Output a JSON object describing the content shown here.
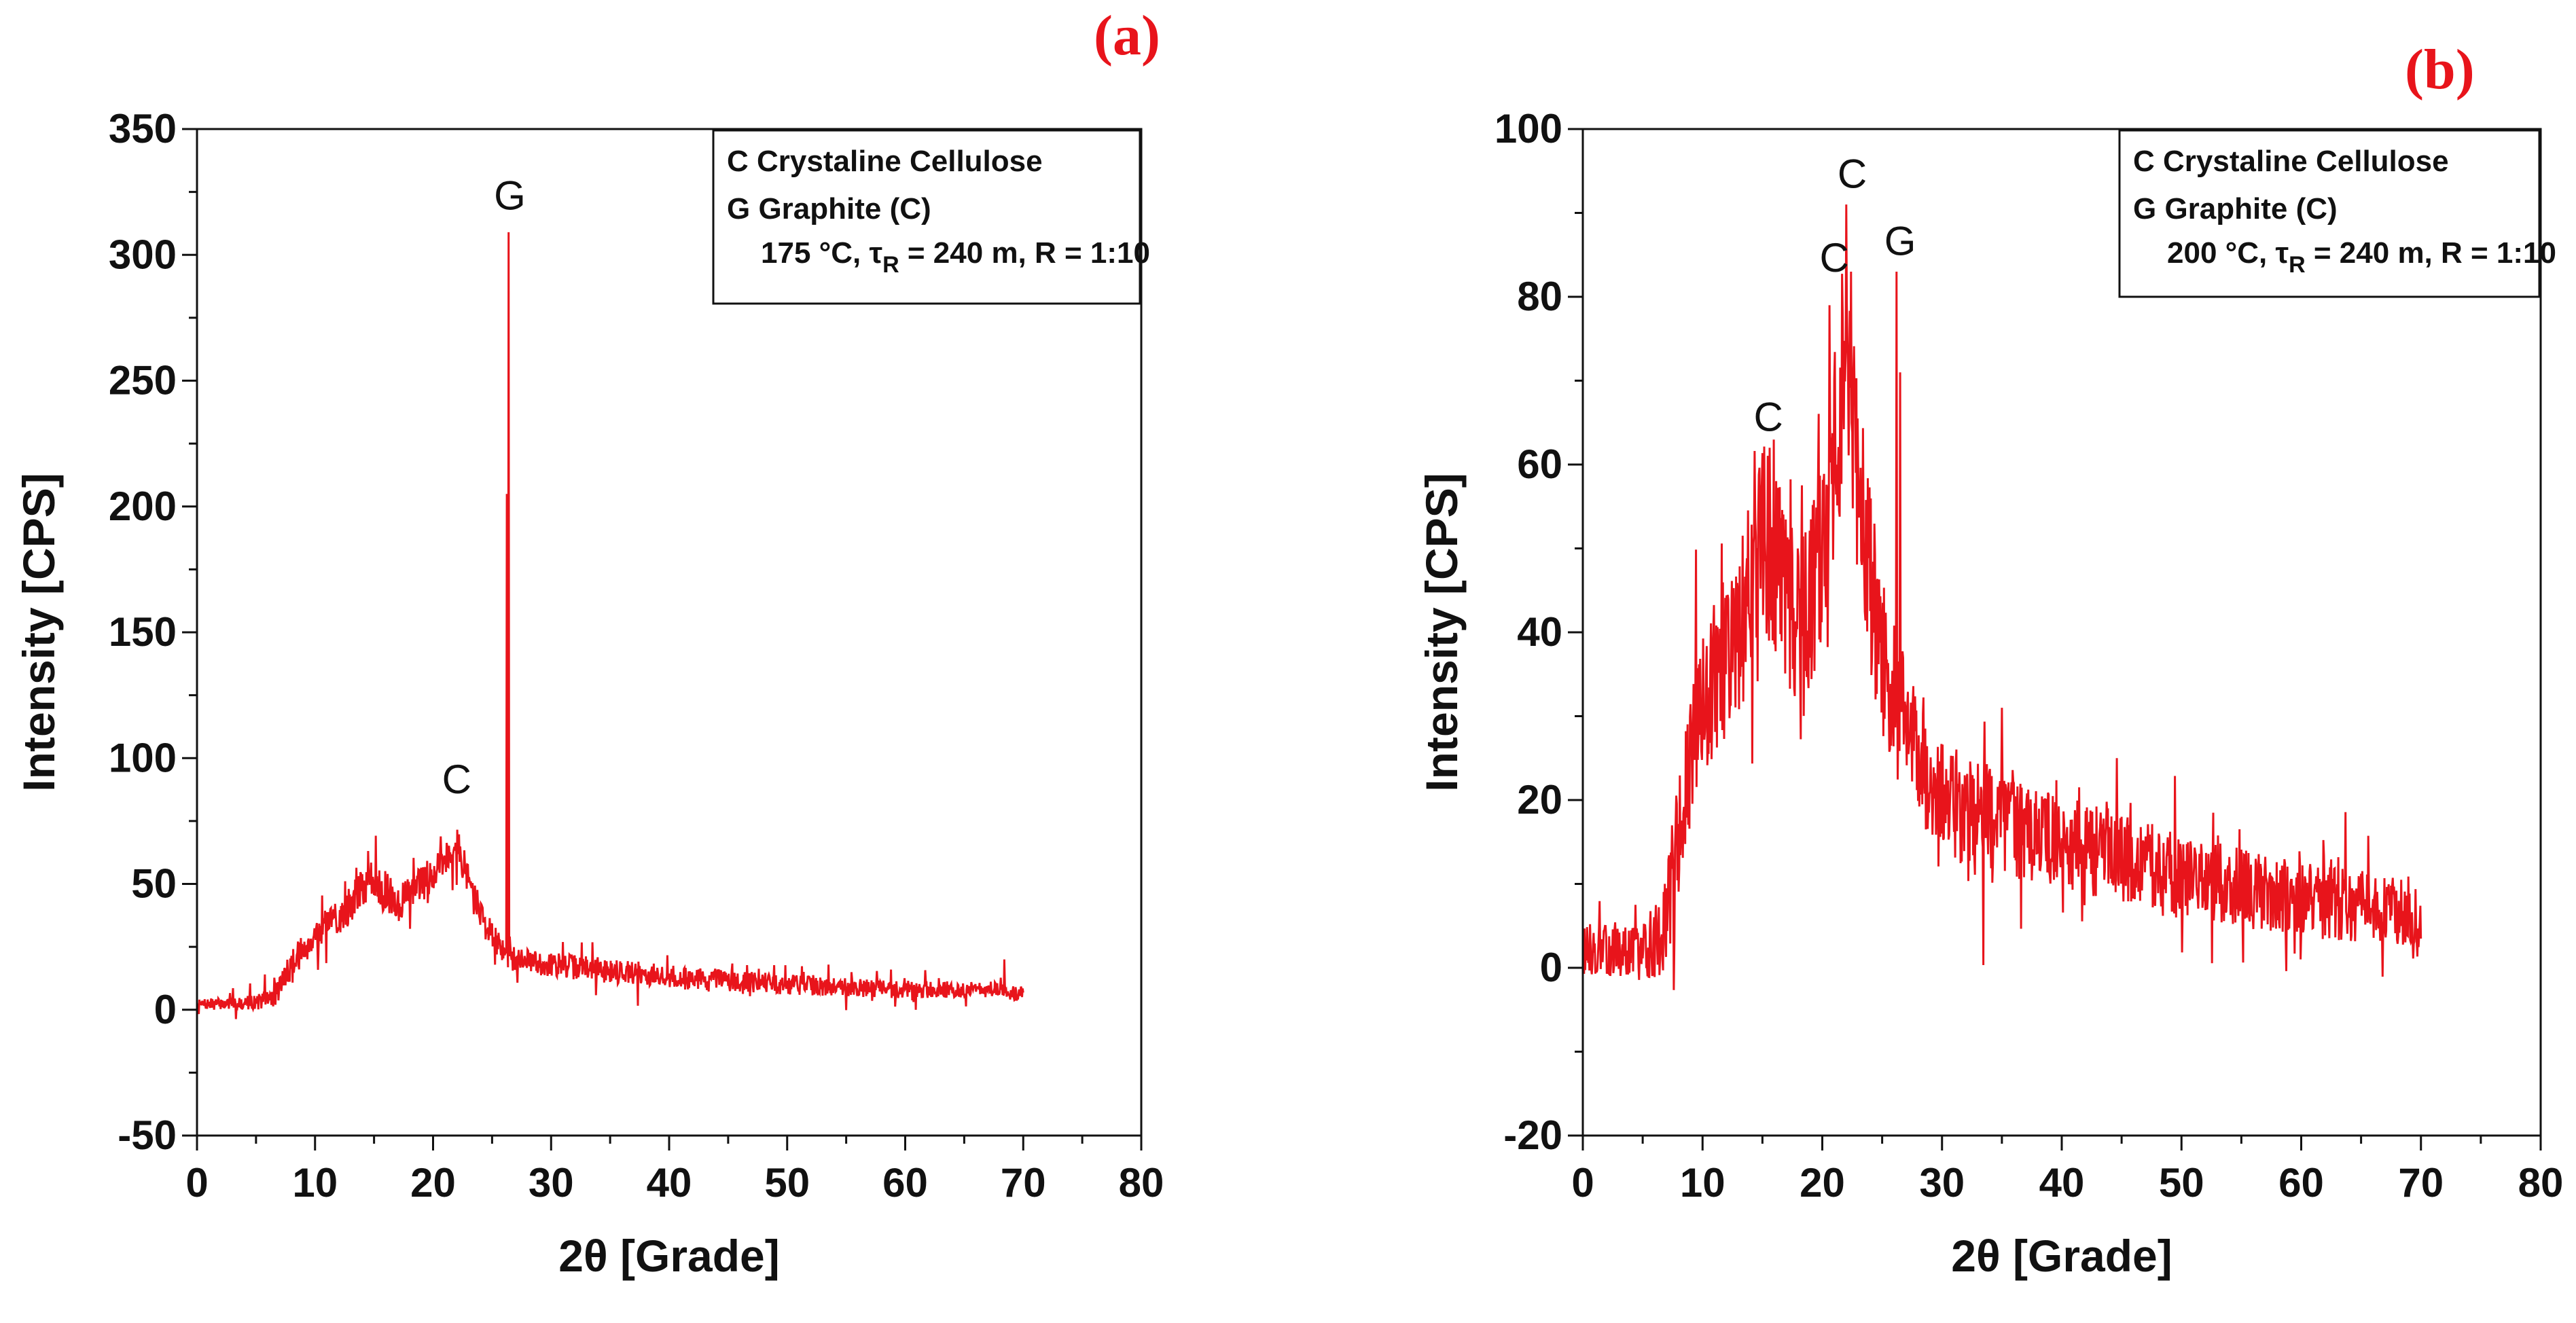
{
  "chart_data": [
    {
      "id": "a",
      "panel_label": "(a)",
      "type": "line",
      "xlabel": "2θ [Grade]",
      "ylabel": "Intensity [CPS]",
      "xlim": [
        0,
        80
      ],
      "ylim": [
        -50,
        350
      ],
      "xticks": [
        0,
        10,
        20,
        30,
        40,
        50,
        60,
        70,
        80
      ],
      "yticks": [
        -50,
        0,
        50,
        100,
        150,
        200,
        250,
        300,
        350
      ],
      "legend": {
        "position": "top-right",
        "lines": [
          "C Crystaline Cellulose",
          "G Graphite (C)"
        ],
        "condition": {
          "temp": "175 °C, τ",
          "sub": "R",
          "rest": " = 240 m, R = 1:10"
        }
      },
      "annotations": [
        {
          "text": "G",
          "x": 26.5,
          "y": 318
        },
        {
          "text": "C",
          "x": 22.0,
          "y": 86
        }
      ],
      "series": [
        {
          "name": "XRD 175 °C",
          "color": "#e8141b",
          "profile": [
            [
              0,
              2
            ],
            [
              5,
              3
            ],
            [
              6.5,
              5
            ],
            [
              8,
              18
            ],
            [
              10,
              30
            ],
            [
              12,
              36
            ],
            [
              14,
              48
            ],
            [
              15,
              52
            ],
            [
              17,
              42
            ],
            [
              19,
              50
            ],
            [
              21,
              60
            ],
            [
              22,
              66
            ],
            [
              23,
              52
            ],
            [
              24.5,
              33
            ],
            [
              25.8,
              24
            ],
            [
              26.6,
              20
            ],
            [
              30,
              18
            ],
            [
              40,
              13
            ],
            [
              50,
              10
            ],
            [
              60,
              8
            ],
            [
              68,
              8
            ],
            [
              70,
              6
            ]
          ],
          "noise": [
            [
              0,
              2
            ],
            [
              5,
              3
            ],
            [
              8,
              6
            ],
            [
              15,
              8
            ],
            [
              22,
              7
            ],
            [
              26,
              5
            ],
            [
              35,
              5
            ],
            [
              50,
              4
            ],
            [
              70,
              3
            ]
          ],
          "peaks": [
            {
              "x": 26.4,
              "y": 309
            },
            {
              "x": 26.25,
              "y": 205
            },
            {
              "x": 68.4,
              "y": 20
            }
          ],
          "x_range": [
            0,
            70
          ],
          "step": 0.05,
          "seed": 7
        }
      ]
    },
    {
      "id": "b",
      "panel_label": "(b)",
      "type": "line",
      "xlabel": "2θ [Grade]",
      "ylabel": "Intensity [CPS]",
      "xlim": [
        0,
        80
      ],
      "ylim": [
        -20,
        100
      ],
      "xticks": [
        0,
        10,
        20,
        30,
        40,
        50,
        60,
        70,
        80
      ],
      "yticks": [
        -20,
        0,
        20,
        40,
        60,
        80,
        100
      ],
      "legend": {
        "position": "top-right",
        "lines": [
          "C Crystaline Cellulose",
          "G Graphite (C)"
        ],
        "condition": {
          "temp": "200 °C, τ",
          "sub": "R",
          "rest": " = 240 m, R = 1:10"
        }
      },
      "annotations": [
        {
          "text": "C",
          "x": 15.5,
          "y": 64
        },
        {
          "text": "C",
          "x": 21.0,
          "y": 83
        },
        {
          "text": "C",
          "x": 22.5,
          "y": 93
        },
        {
          "text": "G",
          "x": 26.5,
          "y": 85
        }
      ],
      "series": [
        {
          "name": "XRD 200 °C",
          "color": "#e8141b",
          "profile": [
            [
              0,
              2
            ],
            [
              5,
              2
            ],
            [
              6.5,
              4
            ],
            [
              8,
              15
            ],
            [
              9.5,
              28
            ],
            [
              11,
              34
            ],
            [
              13,
              40
            ],
            [
              15,
              52
            ],
            [
              16.5,
              46
            ],
            [
              18,
              38
            ],
            [
              20,
              50
            ],
            [
              21,
              62
            ],
            [
              22,
              70
            ],
            [
              23,
              58
            ],
            [
              24.5,
              40
            ],
            [
              26,
              32
            ],
            [
              28,
              26
            ],
            [
              30,
              20
            ],
            [
              35,
              17
            ],
            [
              40,
              15
            ],
            [
              50,
              11
            ],
            [
              60,
              8
            ],
            [
              68,
              7
            ],
            [
              70,
              5
            ]
          ],
          "noise": [
            [
              0,
              3
            ],
            [
              5,
              3
            ],
            [
              8,
              8
            ],
            [
              14,
              11
            ],
            [
              22,
              13
            ],
            [
              27,
              8
            ],
            [
              35,
              6
            ],
            [
              50,
              5
            ],
            [
              70,
              4
            ]
          ],
          "peaks": [
            {
              "x": 20.6,
              "y": 79
            },
            {
              "x": 22.0,
              "y": 91
            },
            {
              "x": 22.4,
              "y": 83
            },
            {
              "x": 26.2,
              "y": 83
            },
            {
              "x": 26.5,
              "y": 71
            },
            {
              "x": 15.6,
              "y": 62
            },
            {
              "x": 35.0,
              "y": 31
            }
          ],
          "x_range": [
            0,
            70
          ],
          "step": 0.05,
          "seed": 13
        }
      ]
    }
  ]
}
